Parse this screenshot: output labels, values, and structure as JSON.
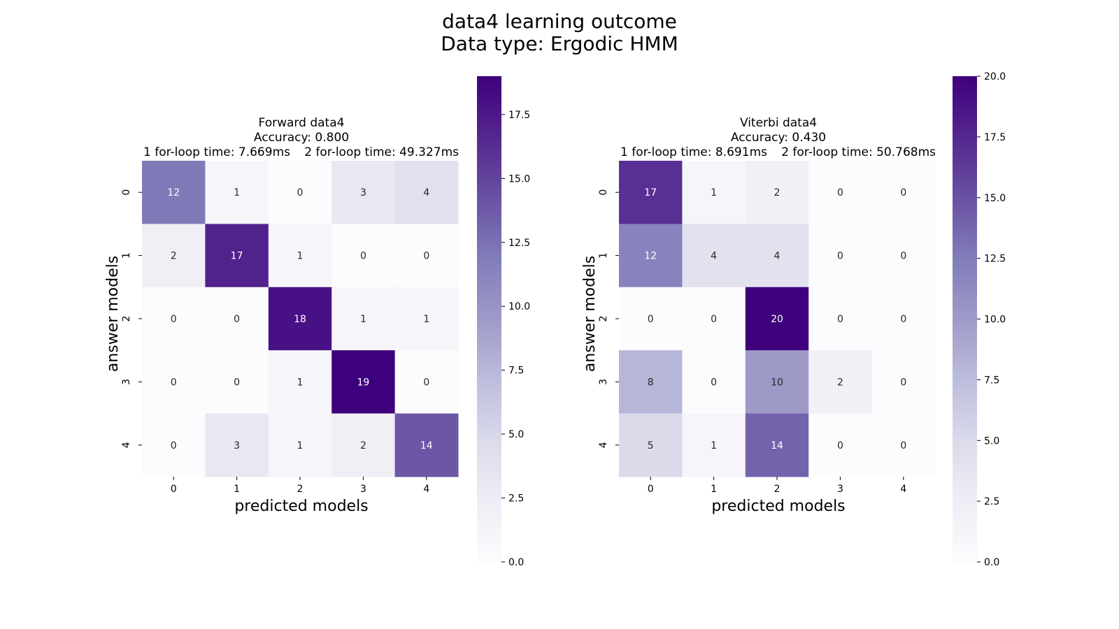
{
  "figure": {
    "title_line1": "data4 learning outcome",
    "title_line2": "Data type: Ergodic HMM"
  },
  "chart_data": [
    {
      "type": "heatmap",
      "title_line1": "Forward data4",
      "title_line2": "Accuracy: 0.800",
      "title_line3_left": "1 for-loop time: 7.669ms",
      "title_line3_right": "2 for-loop time: 49.327ms",
      "xlabel": "predicted models",
      "ylabel": "answer models",
      "x_categories": [
        "0",
        "1",
        "2",
        "3",
        "4"
      ],
      "y_categories": [
        "0",
        "1",
        "2",
        "3",
        "4"
      ],
      "values": [
        [
          12,
          1,
          0,
          3,
          4
        ],
        [
          2,
          17,
          1,
          0,
          0
        ],
        [
          0,
          0,
          18,
          1,
          1
        ],
        [
          0,
          0,
          1,
          19,
          0
        ],
        [
          0,
          3,
          1,
          2,
          14
        ]
      ],
      "colorbar": {
        "min": 0,
        "max": 19,
        "ticks": [
          "0.0",
          "2.5",
          "5.0",
          "7.5",
          "10.0",
          "12.5",
          "15.0",
          "17.5"
        ],
        "colormap": "Purples"
      }
    },
    {
      "type": "heatmap",
      "title_line1": "Viterbi data4",
      "title_line2": "Accuracy: 0.430",
      "title_line3_left": "1 for-loop time: 8.691ms",
      "title_line3_right": "2 for-loop time: 50.768ms",
      "xlabel": "predicted models",
      "ylabel": "answer models",
      "x_categories": [
        "0",
        "1",
        "2",
        "3",
        "4"
      ],
      "y_categories": [
        "0",
        "1",
        "2",
        "3",
        "4"
      ],
      "values": [
        [
          17,
          1,
          2,
          0,
          0
        ],
        [
          12,
          4,
          4,
          0,
          0
        ],
        [
          0,
          0,
          20,
          0,
          0
        ],
        [
          8,
          0,
          10,
          2,
          0
        ],
        [
          5,
          1,
          14,
          0,
          0
        ]
      ],
      "colorbar": {
        "min": 0,
        "max": 20,
        "ticks": [
          "0.0",
          "2.5",
          "5.0",
          "7.5",
          "10.0",
          "12.5",
          "15.0",
          "17.5",
          "20.0"
        ],
        "colormap": "Purples"
      }
    }
  ]
}
